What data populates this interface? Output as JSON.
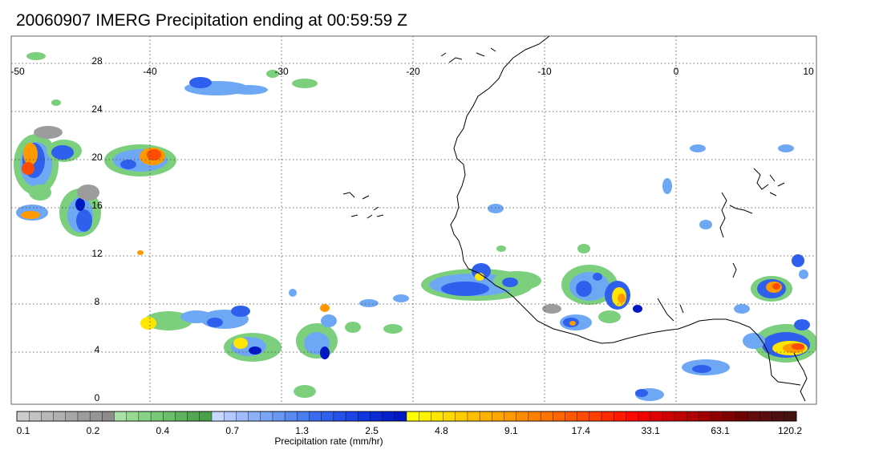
{
  "title": "20060907 IMERG Precipitation ending at 00:59:59 Z",
  "map": {
    "lon_range": [
      -50,
      10
    ],
    "lat_range": [
      -1,
      29
    ],
    "lon_labels": [
      "-50",
      "-40",
      "-30",
      "-20",
      "-10",
      "0",
      "10"
    ],
    "lat_labels": [
      "28",
      "24",
      "20",
      "16",
      "12",
      "8",
      "4",
      "0"
    ],
    "gridlines": "dotted"
  },
  "colorbar": {
    "title": "Precipitation rate (mm/hr)",
    "tick_labels": [
      "0.1",
      "0.2",
      "0.4",
      "0.7",
      "1.3",
      "2.5",
      "4.8",
      "9.1",
      "17.4",
      "33.1",
      "63.1",
      "120.2"
    ],
    "colors": [
      "#cccccc",
      "#c2c2c2",
      "#b8b8b8",
      "#b0b0b0",
      "#a6a6a6",
      "#9c9c9c",
      "#959595",
      "#8c8c8c",
      "#a9e0a3",
      "#98d992",
      "#86d183",
      "#78c977",
      "#6bbf6b",
      "#5eb45e",
      "#52a852",
      "#49a049",
      "#c8d8ff",
      "#b3c9ff",
      "#a0bbfb",
      "#8eb0f8",
      "#7aa4f5",
      "#6a97f2",
      "#5a8aef",
      "#4a7def",
      "#3a6aee",
      "#2f5fed",
      "#2450e9",
      "#1a44e3",
      "#1036dd",
      "#0a2ad3",
      "#0420cc",
      "#0018c4",
      "#ffff00",
      "#fff200",
      "#ffe600",
      "#ffd900",
      "#ffcc00",
      "#ffbf00",
      "#ffb300",
      "#ffa600",
      "#ff9900",
      "#ff8c00",
      "#ff7f00",
      "#ff7300",
      "#ff6600",
      "#ff5900",
      "#ff4c00",
      "#ff3f00",
      "#ff2a00",
      "#ff1a00",
      "#ff0a00",
      "#f00000",
      "#e00000",
      "#d00000",
      "#c00000",
      "#b00000",
      "#a00000",
      "#900000",
      "#800000",
      "#700000",
      "#650b0b",
      "#5a0e0e",
      "#4f1010",
      "#451212"
    ]
  },
  "precip_palette": {
    "light": "#9c9c9c",
    "green": "#7ccf7c",
    "lightblue": "#6ea8f5",
    "blue": "#2f5fed",
    "darkblue": "#0018c4",
    "yellow": "#ffe600",
    "orange": "#ff9900",
    "red": "#ff4c00"
  }
}
